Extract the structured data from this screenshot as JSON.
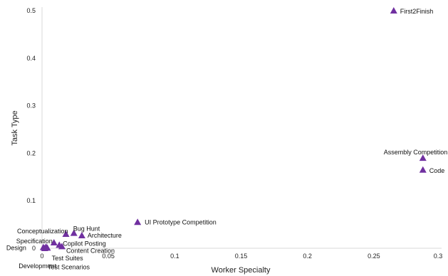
{
  "chart_data": {
    "type": "scatter",
    "xlabel": "Worker Specialty",
    "ylabel": "Task Type",
    "xlim": [
      0,
      0.3
    ],
    "ylim": [
      0,
      0.5
    ],
    "x_ticks": [
      "0",
      "0.05",
      "0.1",
      "0.15",
      "0.2",
      "0.25",
      "0.3"
    ],
    "y_ticks": [
      "0",
      "0.1",
      "0.2",
      "0.3",
      "0.4",
      "0.5"
    ],
    "grid": false,
    "legend": false,
    "marker": "triangle",
    "marker_color": "#7030a0",
    "points": [
      {
        "label": "First2Finish",
        "x": 0.265,
        "y": 0.5
      },
      {
        "label": "Assembly Competition",
        "x": 0.287,
        "y": 0.19
      },
      {
        "label": "Code",
        "x": 0.287,
        "y": 0.165
      },
      {
        "label": "UI Prototype Competition",
        "x": 0.072,
        "y": 0.055
      },
      {
        "label": "Bug Hunt",
        "x": 0.024,
        "y": 0.032
      },
      {
        "label": "Architecture",
        "x": 0.03,
        "y": 0.027
      },
      {
        "label": "Conceptualization",
        "x": 0.018,
        "y": 0.03
      },
      {
        "label": "Specification",
        "x": 0.009,
        "y": 0.012
      },
      {
        "label": "Copilot Posting",
        "x": 0.013,
        "y": 0.007
      },
      {
        "label": "Design",
        "x": 0.001,
        "y": 0.002
      },
      {
        "label": "Development",
        "x": 0.002,
        "y": 0.0
      },
      {
        "label": "Test Suites",
        "x": 0.003,
        "y": 0.003
      },
      {
        "label": "Test Scenarios",
        "x": 0.004,
        "y": 0.001
      },
      {
        "label": "Content Creation",
        "x": 0.015,
        "y": 0.004
      }
    ]
  }
}
